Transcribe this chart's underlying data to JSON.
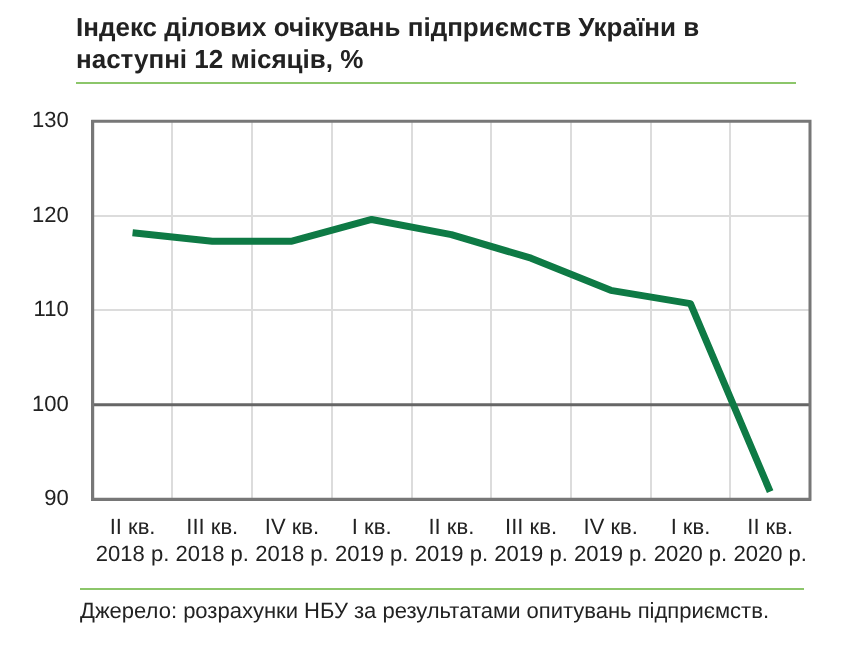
{
  "chart_data": {
    "type": "line",
    "title": "Індекс ділових очікувань підприємств  України в наступні 12 місяців, %",
    "categories": [
      "II кв.\n2018 р.",
      "III кв.\n2018 р.",
      "IV кв.\n2018 р.",
      "I кв.\n2019 р.",
      "II кв.\n2019 р.",
      "III кв.\n2019 р.",
      "IV кв.\n2019 р.",
      "I кв.\n2020 р.",
      "II кв.\n2020 р."
    ],
    "series": [
      {
        "color": "#0e7a45",
        "values": [
          118.2,
          117.3,
          117.3,
          119.6,
          118.0,
          115.5,
          112.1,
          110.7,
          90.8
        ]
      }
    ],
    "ylim": [
      90,
      130
    ],
    "yticks": [
      90,
      100,
      110,
      120,
      130
    ],
    "grid": true,
    "legend": false,
    "marker": "none",
    "line_style": "solid",
    "ref_lines": [
      {
        "axis": "y",
        "value": 100,
        "color": "#666666"
      }
    ],
    "annotations": [
      "Джерело:  розрахунки  НБУ за  результатами  опитувань підприємств."
    ]
  }
}
